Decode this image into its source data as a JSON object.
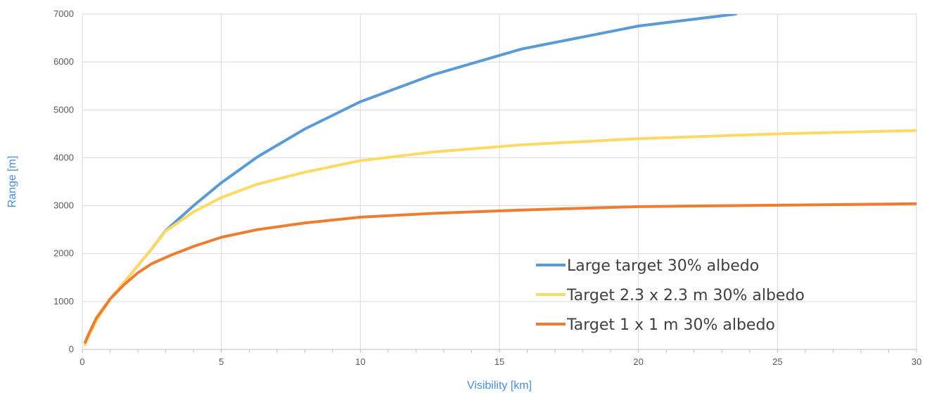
{
  "chart_data": {
    "type": "line",
    "title": "",
    "xlabel": "Visibility [km]",
    "ylabel": "Range [m]",
    "xlim": [
      0,
      30
    ],
    "ylim": [
      0,
      7000
    ],
    "x_ticks": [
      0,
      5,
      10,
      15,
      20,
      25,
      30
    ],
    "y_ticks": [
      0,
      1000,
      2000,
      3000,
      4000,
      5000,
      6000,
      7000
    ],
    "x_minor_step": 1,
    "grid": true,
    "legend_position": "bottom-right",
    "series": [
      {
        "name": "Large target 30% albedo",
        "color": "#5b9bd5",
        "points": [
          [
            0.1,
            100
          ],
          [
            0.2,
            250
          ],
          [
            0.5,
            600
          ],
          [
            1,
            1050
          ],
          [
            1.5,
            1400
          ],
          [
            2,
            1750
          ],
          [
            2.5,
            2100
          ],
          [
            3,
            2480
          ],
          [
            4,
            3000
          ],
          [
            5,
            3480
          ],
          [
            6.3,
            4020
          ],
          [
            8,
            4600
          ],
          [
            10,
            5170
          ],
          [
            12.6,
            5730
          ],
          [
            15.8,
            6270
          ],
          [
            20,
            6750
          ],
          [
            23.5,
            7000
          ]
        ]
      },
      {
        "name": "Target 2.3 x 2.3 m 30% albedo",
        "color": "#ffd966",
        "points": [
          [
            0.1,
            100
          ],
          [
            0.2,
            250
          ],
          [
            0.5,
            600
          ],
          [
            1,
            1050
          ],
          [
            1.5,
            1400
          ],
          [
            2,
            1750
          ],
          [
            2.5,
            2100
          ],
          [
            3,
            2470
          ],
          [
            4,
            2870
          ],
          [
            5,
            3170
          ],
          [
            6.3,
            3450
          ],
          [
            8,
            3700
          ],
          [
            10,
            3940
          ],
          [
            12.6,
            4120
          ],
          [
            15.8,
            4270
          ],
          [
            20,
            4400
          ],
          [
            25,
            4500
          ],
          [
            30,
            4570
          ]
        ]
      },
      {
        "name": "Target 1 x 1 m 30% albedo",
        "color": "#ed7d31",
        "points": [
          [
            0.1,
            150
          ],
          [
            0.2,
            280
          ],
          [
            0.5,
            650
          ],
          [
            1,
            1050
          ],
          [
            1.5,
            1350
          ],
          [
            2,
            1600
          ],
          [
            2.5,
            1790
          ],
          [
            3.2,
            1970
          ],
          [
            4,
            2150
          ],
          [
            5,
            2340
          ],
          [
            6.3,
            2500
          ],
          [
            8,
            2640
          ],
          [
            10,
            2760
          ],
          [
            12.6,
            2840
          ],
          [
            15.8,
            2910
          ],
          [
            20,
            2980
          ],
          [
            25,
            3010
          ],
          [
            30,
            3040
          ]
        ]
      }
    ]
  }
}
